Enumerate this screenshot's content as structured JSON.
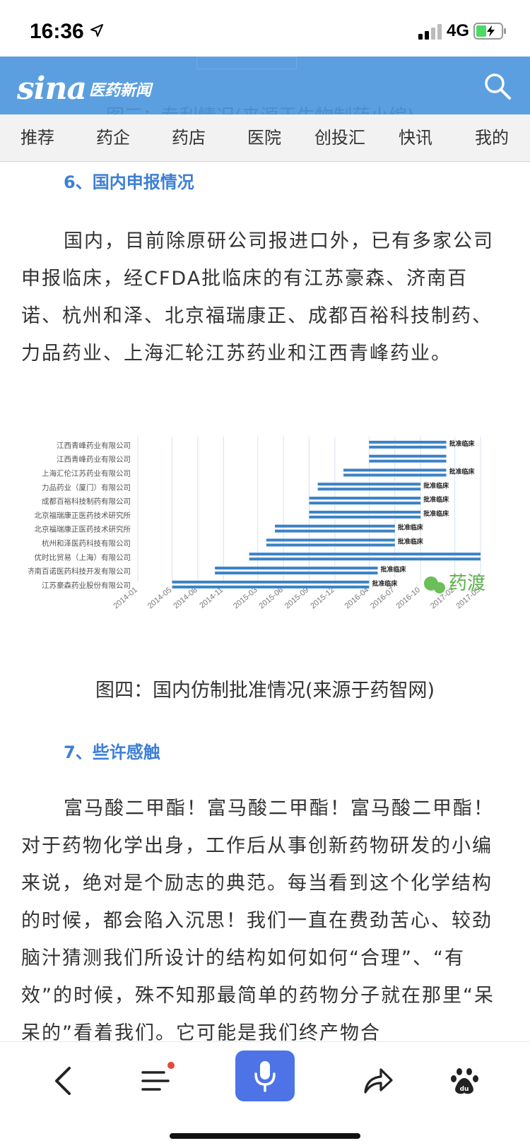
{
  "status": {
    "time": "16:36",
    "network": "4G"
  },
  "header": {
    "logo_text": "sina",
    "logo_sub": "医药新闻",
    "ghost_caption": "图三：专利情况(来源于生物制药小编)"
  },
  "nav": {
    "tabs": [
      "推荐",
      "药企",
      "药店",
      "医院",
      "创投汇",
      "快讯",
      "我的"
    ]
  },
  "article": {
    "section6_title": "6、国内申报情况",
    "para1": "国内，目前除原研公司报进口外，已有多家公司申报临床，经CFDA批临床的有江苏豪森、济南百诺、杭州和泽、北京福瑞康正、成都百裕科技制药、力品药业、上海汇轮江苏药业和江西青峰药业。",
    "figure_caption": "图四：国内仿制批准情况(来源于药智网)",
    "section7_title": "7、些许感触",
    "para2": "富马酸二甲酯！富马酸二甲酯！富马酸二甲酯！对于药物化学出身，工作后从事创新药物研发的小编来说，绝对是个励志的典范。每当看到这个化学结构的时候，都会陷入沉思！我们一直在费劲苦心、较劲脑汁猜测我们所设计的结构如何如何“合理”、“有效”的时候，殊不知那最简单的药物分子就在那里“呆呆的”看着我们。它可能是我们终产物合"
  },
  "chart_data": {
    "type": "gantt",
    "x_ticks": [
      "2014-01",
      "2014-05",
      "2014-08",
      "2014-11",
      "2015-03",
      "2015-06",
      "2015-09",
      "2015-12",
      "2016-04",
      "2016-07",
      "2016-10",
      "2017-02",
      "2017-05"
    ],
    "watermark": "药渡",
    "colors": {
      "bar": "#3b82c4",
      "grid": "#d5e2ee"
    },
    "rows": [
      {
        "company": "江西青峰药业有限公司",
        "bars": [
          [
            "2016-04",
            "2017-01"
          ]
        ],
        "label": "批准临床"
      },
      {
        "company": "江西青峰药业有限公司",
        "bars": [
          [
            "2016-04",
            "2017-01"
          ]
        ],
        "label": ""
      },
      {
        "company": "上海汇伦江苏药业有限公司",
        "bars": [
          [
            "2016-01",
            "2017-01"
          ]
        ],
        "label": "批准临床"
      },
      {
        "company": "力品药业（厦门）有限公司",
        "bars": [
          [
            "2015-10",
            "2016-10"
          ]
        ],
        "label": "批准临床"
      },
      {
        "company": "成都百裕科技制药有限公司",
        "bars": [
          [
            "2015-09",
            "2016-10"
          ]
        ],
        "label": "批准临床"
      },
      {
        "company": "北京福瑞康正医药技术研究所",
        "bars": [
          [
            "2015-09",
            "2016-10"
          ]
        ],
        "label": "批准临床"
      },
      {
        "company": "北京福瑞康正医药技术研究所",
        "bars": [
          [
            "2015-05",
            "2016-07"
          ]
        ],
        "label": "批准临床"
      },
      {
        "company": "杭州和泽医药科技有限公司",
        "bars": [
          [
            "2015-04",
            "2016-07"
          ]
        ],
        "label": "批准临床"
      },
      {
        "company": "优时比贸易（上海）有限公司",
        "bars": [
          [
            "2015-02",
            "2017-05"
          ]
        ],
        "label": ""
      },
      {
        "company": "济南百诺医药科技开发有限公司",
        "bars": [
          [
            "2014-10",
            "2016-05"
          ]
        ],
        "label": "批准临床"
      },
      {
        "company": "江苏豪森药业股份有限公司",
        "bars": [
          [
            "2014-05",
            "2016-04"
          ]
        ],
        "label": "批准临床"
      }
    ]
  }
}
